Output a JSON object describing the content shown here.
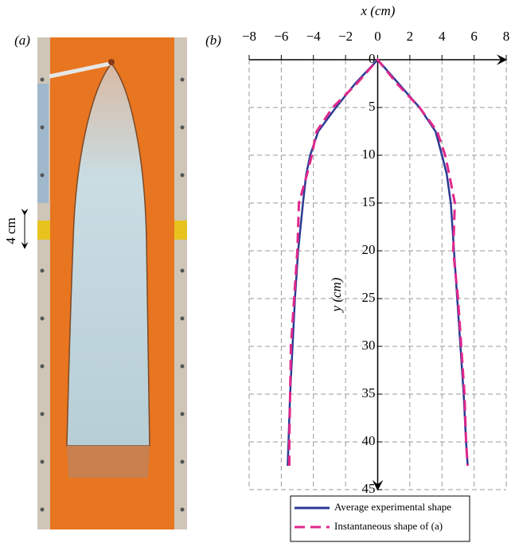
{
  "photo": {
    "label": "(a)",
    "scale_label": "4 cm"
  },
  "chart_data": {
    "type": "line",
    "panel_label": "(b)",
    "x_label": "x (cm)",
    "y_label": "y (cm)",
    "xlim": [
      -8,
      8
    ],
    "ylim": [
      0,
      45
    ],
    "y_inverted": true,
    "grid": true,
    "xticks": [
      {
        "value": -8,
        "label": "−8"
      },
      {
        "value": -6,
        "label": "−6"
      },
      {
        "value": -4,
        "label": "−4"
      },
      {
        "value": -2,
        "label": "−2"
      },
      0,
      2,
      4,
      6,
      8
    ],
    "yticks": [
      0,
      5,
      10,
      15,
      20,
      25,
      30,
      35,
      40,
      45
    ],
    "legend": "bottom",
    "series": [
      {
        "name": "Average experimental shape",
        "color": "#2b3a93",
        "dashed": false,
        "x": [
          -5.6,
          -5.55,
          -5.45,
          -5.3,
          -5.15,
          -4.95,
          -4.65,
          -4.45,
          -4.2,
          -3.7,
          -2.6,
          -1.4,
          0,
          1.3,
          2.6,
          3.6,
          4.0,
          4.3,
          4.55,
          4.75,
          4.95,
          5.15,
          5.35,
          5.5,
          5.6
        ],
        "y": [
          42.5,
          40,
          35,
          30,
          25,
          20,
          15,
          12,
          10,
          7.5,
          5,
          2.5,
          0,
          2.5,
          5,
          7.5,
          10,
          12,
          15,
          20,
          25,
          30,
          35,
          40,
          42.5
        ]
      },
      {
        "name": "Instantaneous shape of (a)",
        "color": "#e0288c",
        "dashed": true,
        "x": [
          -5.5,
          -5.5,
          -5.45,
          -5.4,
          -5.2,
          -5.0,
          -4.9,
          -4.4,
          -4.1,
          -3.8,
          -2.8,
          -1.3,
          0,
          1.2,
          2.6,
          3.7,
          4.2,
          4.45,
          4.8,
          4.7,
          5.0,
          5.2,
          5.4,
          5.5,
          5.6
        ],
        "y": [
          42.5,
          40,
          35,
          30,
          25,
          20,
          15,
          12,
          10,
          7.5,
          5,
          2.5,
          0,
          2.5,
          5,
          7.5,
          10,
          12,
          15,
          20,
          25,
          30,
          35,
          40,
          42.5
        ]
      }
    ]
  }
}
